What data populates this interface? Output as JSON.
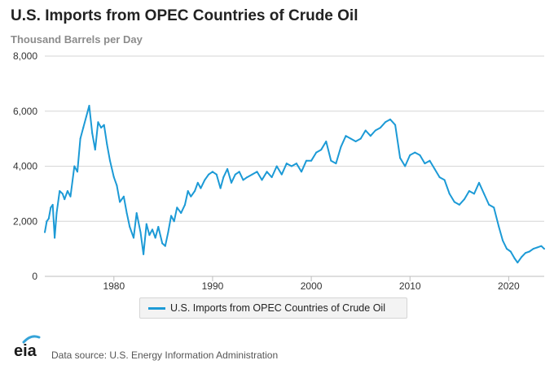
{
  "header": {
    "title": "U.S. Imports from OPEC Countries of Crude Oil",
    "subtitle": "Thousand Barrels per Day"
  },
  "footer": {
    "logo_text": "eia",
    "source": "Data source: U.S. Energy Information Administration"
  },
  "colors": {
    "series": "#1c9ad6",
    "grid": "#d6d6d6",
    "axis_text": "#333333",
    "logo_arc": "#35a3d8"
  },
  "chart_data": {
    "type": "line",
    "title": "U.S. Imports from OPEC Countries of Crude Oil",
    "ylabel": "Thousand Barrels per Day",
    "xlabel": "",
    "ylim": [
      0,
      8000
    ],
    "xlim": [
      1973,
      2023.6
    ],
    "yticks": [
      0,
      2000,
      4000,
      6000,
      8000
    ],
    "ytick_labels": [
      "0",
      "2,000",
      "4,000",
      "6,000",
      "8,000"
    ],
    "xticks": [
      1980,
      1990,
      2000,
      2010,
      2020
    ],
    "xtick_labels": [
      "1980",
      "1990",
      "2000",
      "2010",
      "2020"
    ],
    "grid": "horizontal",
    "legend_position": "bottom-center",
    "series": [
      {
        "name": "U.S. Imports from OPEC Countries of Crude Oil",
        "color": "#1c9ad6",
        "x": [
          1973.0,
          1973.2,
          1973.4,
          1973.6,
          1973.8,
          1974.0,
          1974.2,
          1974.5,
          1974.8,
          1975.0,
          1975.3,
          1975.6,
          1976.0,
          1976.3,
          1976.6,
          1976.9,
          1977.2,
          1977.5,
          1977.8,
          1978.1,
          1978.4,
          1978.7,
          1979.0,
          1979.3,
          1979.6,
          1980.0,
          1980.3,
          1980.6,
          1981.0,
          1981.3,
          1981.6,
          1982.0,
          1982.3,
          1982.7,
          1983.0,
          1983.3,
          1983.6,
          1983.9,
          1984.2,
          1984.5,
          1984.9,
          1985.2,
          1985.5,
          1985.8,
          1986.1,
          1986.4,
          1986.8,
          1987.2,
          1987.5,
          1987.8,
          1988.2,
          1988.5,
          1988.8,
          1989.2,
          1989.6,
          1990.0,
          1990.4,
          1990.8,
          1991.1,
          1991.5,
          1991.9,
          1992.3,
          1992.7,
          1993.1,
          1993.5,
          1994.0,
          1994.5,
          1995.0,
          1995.5,
          1996.0,
          1996.5,
          1997.0,
          1997.5,
          1998.0,
          1998.5,
          1999.0,
          1999.5,
          2000.0,
          2000.5,
          2001.0,
          2001.5,
          2002.0,
          2002.5,
          2003.0,
          2003.5,
          2004.0,
          2004.5,
          2005.0,
          2005.5,
          2006.0,
          2006.5,
          2007.0,
          2007.5,
          2008.0,
          2008.5,
          2009.0,
          2009.5,
          2010.0,
          2010.5,
          2011.0,
          2011.5,
          2012.0,
          2012.5,
          2013.0,
          2013.5,
          2014.0,
          2014.5,
          2015.0,
          2015.5,
          2016.0,
          2016.5,
          2017.0,
          2017.5,
          2018.0,
          2018.5,
          2019.0,
          2019.4,
          2019.8,
          2020.2,
          2020.6,
          2020.9,
          2021.3,
          2021.7,
          2022.1,
          2022.5,
          2022.9,
          2023.3,
          2023.6
        ],
        "values": [
          1600,
          2000,
          2100,
          2500,
          2600,
          1400,
          2300,
          3100,
          3000,
          2800,
          3100,
          2900,
          4000,
          3800,
          5000,
          5400,
          5800,
          6200,
          5200,
          4600,
          5600,
          5400,
          5500,
          4800,
          4200,
          3600,
          3300,
          2700,
          2900,
          2300,
          1800,
          1400,
          2300,
          1600,
          800,
          1900,
          1500,
          1700,
          1400,
          1800,
          1200,
          1100,
          1600,
          2200,
          2000,
          2500,
          2300,
          2600,
          3100,
          2900,
          3100,
          3400,
          3200,
          3500,
          3700,
          3800,
          3700,
          3200,
          3600,
          3900,
          3400,
          3700,
          3800,
          3500,
          3600,
          3700,
          3800,
          3500,
          3800,
          3600,
          4000,
          3700,
          4100,
          4000,
          4100,
          3800,
          4200,
          4200,
          4500,
          4600,
          4900,
          4200,
          4100,
          4700,
          5100,
          5000,
          4900,
          5000,
          5300,
          5100,
          5300,
          5400,
          5600,
          5700,
          5500,
          4300,
          4000,
          4400,
          4500,
          4400,
          4100,
          4200,
          3900,
          3600,
          3500,
          3000,
          2700,
          2600,
          2800,
          3100,
          3000,
          3400,
          3000,
          2600,
          2500,
          1800,
          1300,
          1000,
          900,
          650,
          500,
          700,
          850,
          900,
          1000,
          1050,
          1100,
          1000
        ]
      }
    ]
  }
}
